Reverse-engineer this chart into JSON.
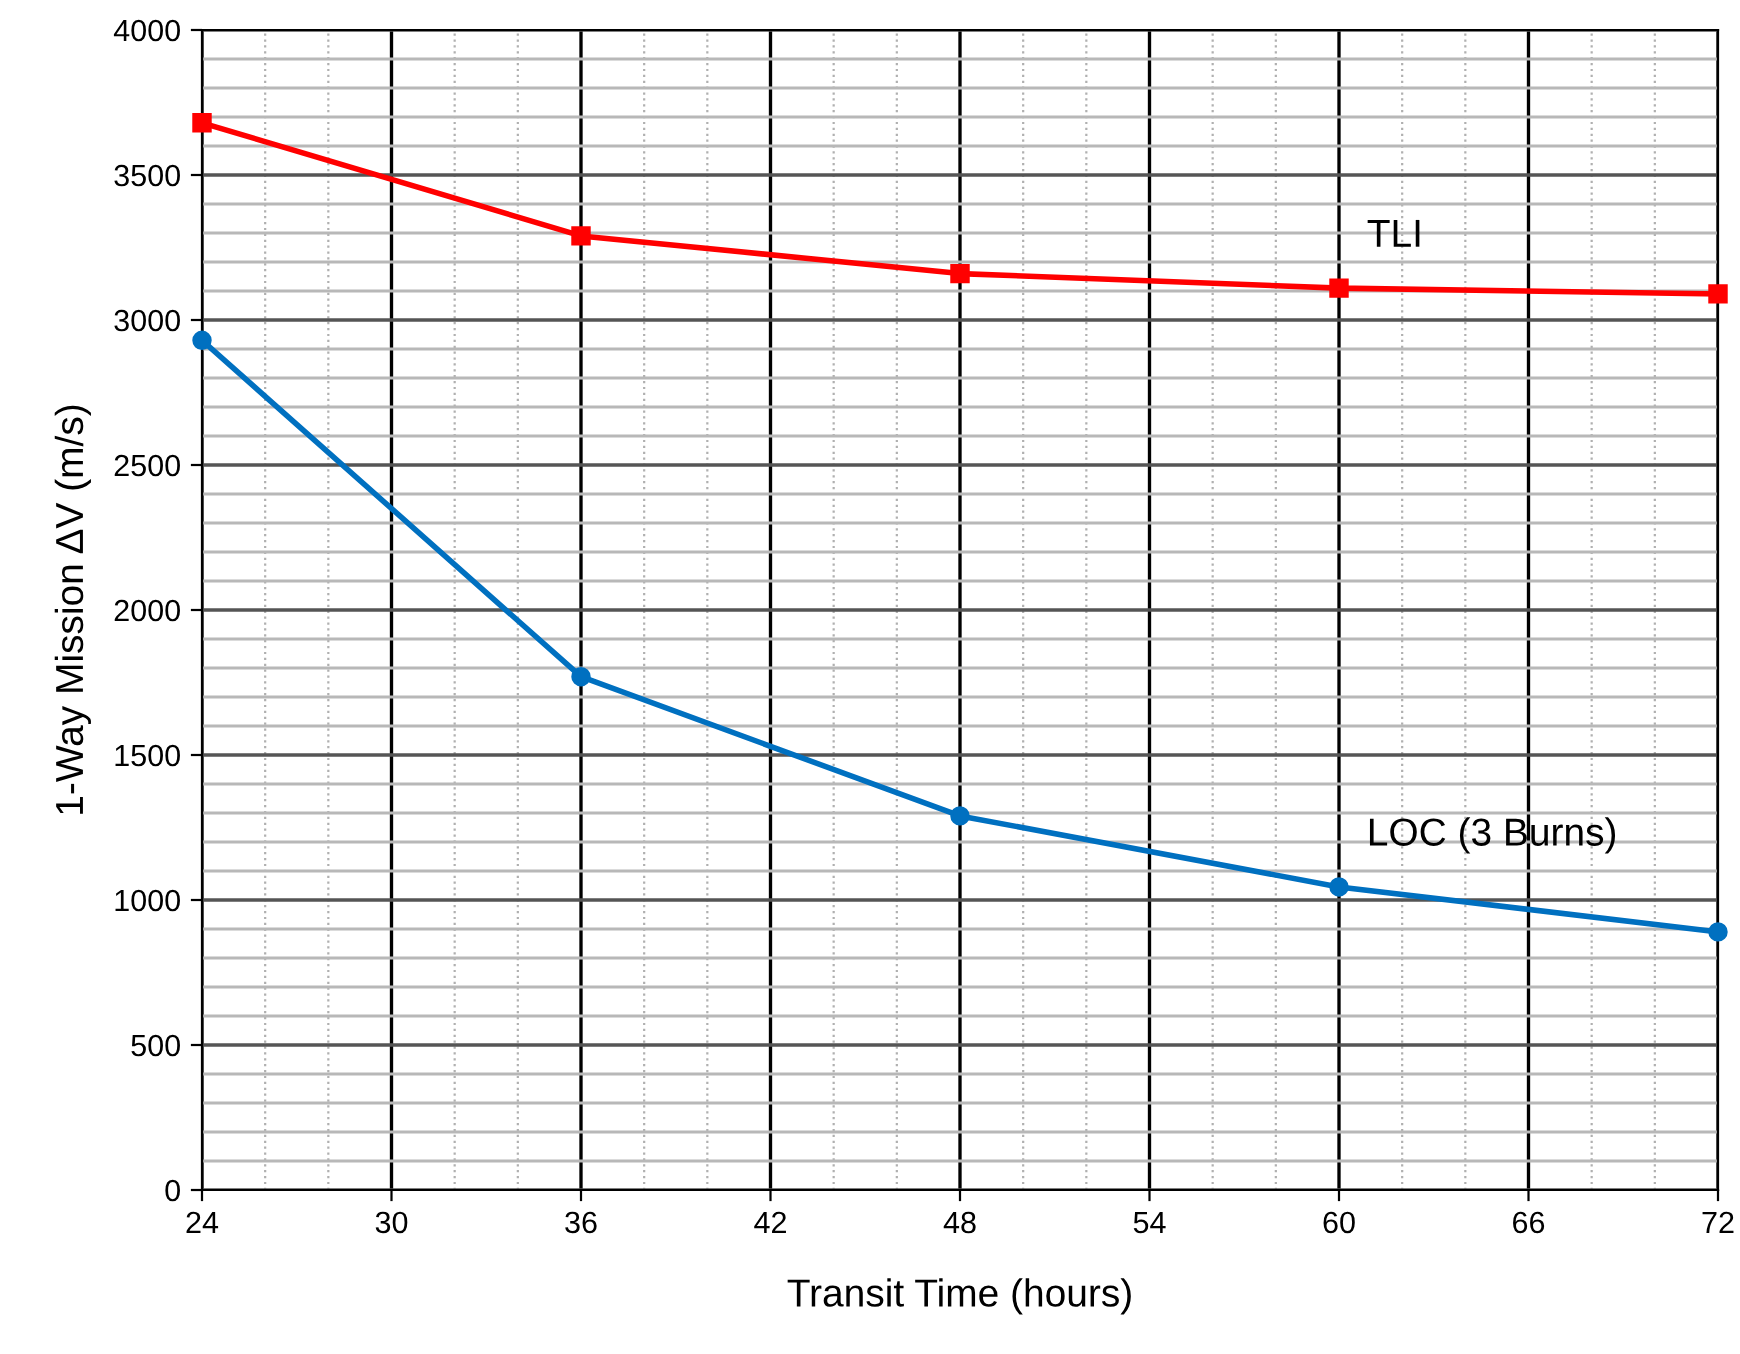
{
  "chart_data": {
    "type": "line",
    "xlabel": "Transit Time (hours)",
    "ylabel": "1-Way Mission ΔV (m/s)",
    "x": [
      24,
      36,
      48,
      60,
      72
    ],
    "series": [
      {
        "name": "TLI",
        "color": "#ff0000",
        "marker": "square",
        "values": [
          3680,
          3290,
          3160,
          3110,
          3090
        ]
      },
      {
        "name": "LOC (3 Burns)",
        "color": "#0070c0",
        "marker": "circle",
        "values": [
          2930,
          1770,
          1290,
          1045,
          890
        ]
      }
    ],
    "xlim": [
      24,
      72
    ],
    "xticks": [
      24,
      30,
      36,
      42,
      48,
      54,
      60,
      66,
      72
    ],
    "ylim": [
      0,
      4000
    ],
    "yticks": [
      0,
      500,
      1000,
      1500,
      2000,
      2500,
      3000,
      3500,
      4000
    ],
    "grid": true,
    "legend": false,
    "line_style": "solid"
  }
}
